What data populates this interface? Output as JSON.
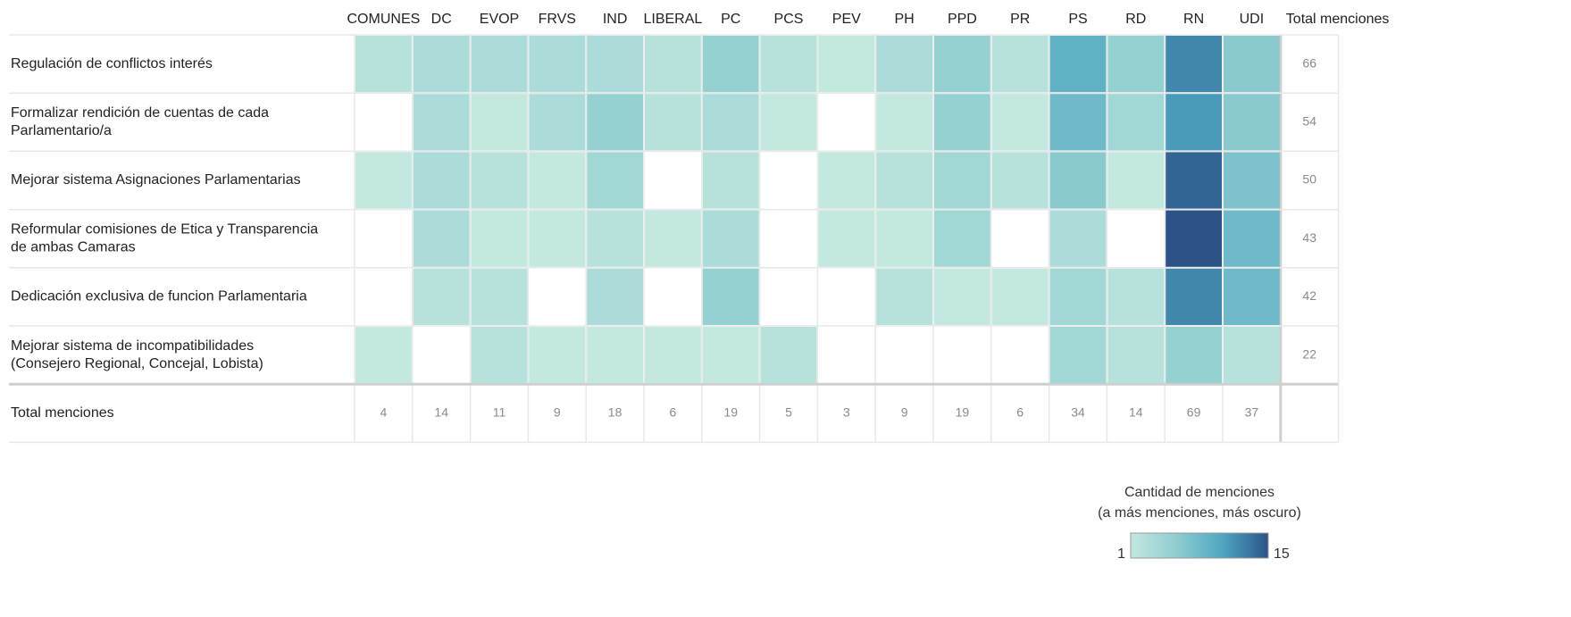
{
  "chart_data": {
    "type": "heatmap",
    "columns": [
      "COMUNES",
      "DC",
      "EVOP",
      "FRVS",
      "IND",
      "LIBERAL",
      "PC",
      "PCS",
      "PEV",
      "PH",
      "PPD",
      "PR",
      "PS",
      "RD",
      "RN",
      "UDI"
    ],
    "column_total_header": "Total menciones",
    "row_total_label": "Total menciones",
    "rows": [
      {
        "label": [
          "Regulación de conflictos interés"
        ],
        "values": [
          2,
          3,
          3,
          3,
          3,
          2,
          5,
          2,
          1,
          3,
          5,
          2,
          9,
          5,
          12,
          6
        ],
        "total": 66
      },
      {
        "label": [
          "Formalizar rendición de cuentas de cada",
          "Parlamentario/a"
        ],
        "values": [
          null,
          3,
          1,
          3,
          5,
          2,
          3,
          1,
          null,
          1,
          5,
          1,
          8,
          4,
          11,
          6
        ],
        "total": 54
      },
      {
        "label": [
          "Mejorar sistema Asignaciones Parlamentarias"
        ],
        "values": [
          1,
          3,
          2,
          1,
          4,
          null,
          2,
          null,
          1,
          2,
          4,
          2,
          6,
          1,
          14,
          7
        ],
        "total": 50
      },
      {
        "label": [
          "Reformular comisiones de Etica y Transparencia",
          "de ambas Camaras"
        ],
        "values": [
          null,
          3,
          1,
          1,
          2,
          1,
          3,
          null,
          1,
          1,
          4,
          null,
          3,
          null,
          15,
          8
        ],
        "total": 43
      },
      {
        "label": [
          "Dedicación exclusiva de funcion Parlamentaria"
        ],
        "values": [
          null,
          2,
          2,
          null,
          3,
          null,
          5,
          null,
          null,
          2,
          1,
          1,
          4,
          2,
          12,
          8
        ],
        "total": 42
      },
      {
        "label": [
          "Mejorar sistema de incompatibilidades",
          "(Consejero Regional, Concejal, Lobista)"
        ],
        "values": [
          1,
          null,
          2,
          1,
          1,
          1,
          1,
          2,
          null,
          null,
          null,
          null,
          4,
          2,
          5,
          2
        ],
        "total": 22
      }
    ],
    "column_totals": [
      4,
      14,
      11,
      9,
      18,
      6,
      19,
      5,
      3,
      9,
      19,
      6,
      34,
      14,
      69,
      37
    ],
    "color_scale": {
      "min": 1,
      "max": 15,
      "colors": [
        "#c2e8df",
        "#8fcdd0",
        "#4fa6c2",
        "#2b5388"
      ]
    },
    "legend_title": [
      "Cantidad de menciones",
      "(a más menciones, más oscuro)"
    ]
  }
}
